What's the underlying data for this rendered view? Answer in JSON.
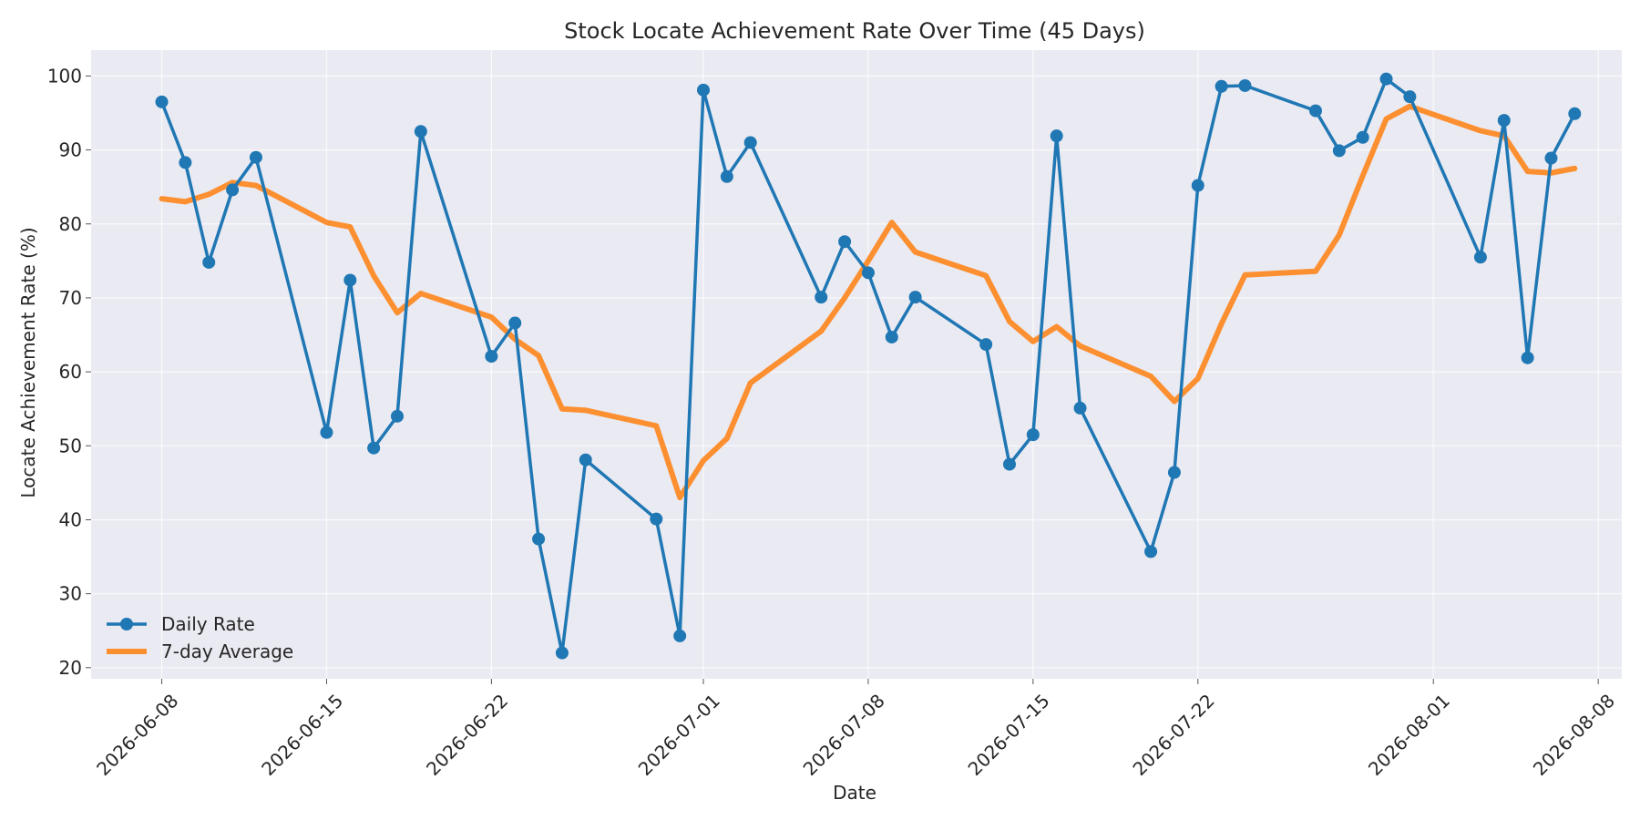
{
  "chart_data": {
    "type": "line",
    "title": "Stock Locate Achievement Rate Over Time (45 Days)",
    "xlabel": "Date",
    "ylabel": "Locate Achievement Rate (%)",
    "ylim": [
      18.5,
      103.5
    ],
    "xlim": [
      "2026-06-05",
      "2026-08-09"
    ],
    "yticks": [
      20,
      30,
      40,
      50,
      60,
      70,
      80,
      90,
      100
    ],
    "xticks": [
      "2026-06-08",
      "2026-06-15",
      "2026-06-22",
      "2026-07-01",
      "2026-07-08",
      "2026-07-15",
      "2026-07-22",
      "2026-08-01",
      "2026-08-08"
    ],
    "grid": true,
    "legend_position": "lower-left",
    "series": [
      {
        "name": "Daily Rate",
        "color": "#1f77b4",
        "marker": "circle",
        "points": [
          [
            "2026-06-08",
            96.5
          ],
          [
            "2026-06-09",
            88.3
          ],
          [
            "2026-06-10",
            74.8
          ],
          [
            "2026-06-11",
            84.6
          ],
          [
            "2026-06-12",
            89.0
          ],
          [
            "2026-06-15",
            51.8
          ],
          [
            "2026-06-16",
            72.4
          ],
          [
            "2026-06-17",
            49.7
          ],
          [
            "2026-06-18",
            54.0
          ],
          [
            "2026-06-19",
            92.5
          ],
          [
            "2026-06-22",
            62.1
          ],
          [
            "2026-06-23",
            66.6
          ],
          [
            "2026-06-24",
            37.4
          ],
          [
            "2026-06-25",
            22.0
          ],
          [
            "2026-06-26",
            48.1
          ],
          [
            "2026-06-29",
            40.1
          ],
          [
            "2026-06-30",
            24.3
          ],
          [
            "2026-07-01",
            98.1
          ],
          [
            "2026-07-02",
            86.4
          ],
          [
            "2026-07-03",
            91.0
          ],
          [
            "2026-07-06",
            70.1
          ],
          [
            "2026-07-07",
            77.6
          ],
          [
            "2026-07-08",
            73.4
          ],
          [
            "2026-07-09",
            64.7
          ],
          [
            "2026-07-10",
            70.1
          ],
          [
            "2026-07-13",
            63.7
          ],
          [
            "2026-07-14",
            47.5
          ],
          [
            "2026-07-15",
            51.5
          ],
          [
            "2026-07-16",
            91.9
          ],
          [
            "2026-07-17",
            55.1
          ],
          [
            "2026-07-20",
            35.7
          ],
          [
            "2026-07-21",
            46.4
          ],
          [
            "2026-07-22",
            85.2
          ],
          [
            "2026-07-23",
            98.6
          ],
          [
            "2026-07-24",
            98.7
          ],
          [
            "2026-07-27",
            95.3
          ],
          [
            "2026-07-28",
            89.9
          ],
          [
            "2026-07-29",
            91.7
          ],
          [
            "2026-07-30",
            99.6
          ],
          [
            "2026-07-31",
            97.2
          ],
          [
            "2026-08-03",
            75.5
          ],
          [
            "2026-08-04",
            94.0
          ],
          [
            "2026-08-05",
            61.9
          ],
          [
            "2026-08-06",
            88.9
          ],
          [
            "2026-08-07",
            94.9
          ]
        ]
      },
      {
        "name": "7-day Average",
        "color": "#ff7f0e",
        "marker": "none",
        "points": [
          [
            "2026-06-08",
            83.4
          ],
          [
            "2026-06-09",
            83.0
          ],
          [
            "2026-06-10",
            84.0
          ],
          [
            "2026-06-11",
            85.6
          ],
          [
            "2026-06-12",
            85.2
          ],
          [
            "2026-06-15",
            80.2
          ],
          [
            "2026-06-16",
            79.6
          ],
          [
            "2026-06-17",
            73.0
          ],
          [
            "2026-06-18",
            68.0
          ],
          [
            "2026-06-19",
            70.6
          ],
          [
            "2026-06-22",
            67.4
          ],
          [
            "2026-06-23",
            64.4
          ],
          [
            "2026-06-24",
            62.2
          ],
          [
            "2026-06-25",
            55.0
          ],
          [
            "2026-06-26",
            54.8
          ],
          [
            "2026-06-29",
            52.7
          ],
          [
            "2026-06-30",
            43.0
          ],
          [
            "2026-07-01",
            48.0
          ],
          [
            "2026-07-02",
            51.0
          ],
          [
            "2026-07-03",
            58.5
          ],
          [
            "2026-07-06",
            65.5
          ],
          [
            "2026-07-07",
            70.0
          ],
          [
            "2026-07-08",
            75.0
          ],
          [
            "2026-07-09",
            80.2
          ],
          [
            "2026-07-10",
            76.2
          ],
          [
            "2026-07-13",
            73.0
          ],
          [
            "2026-07-14",
            66.8
          ],
          [
            "2026-07-15",
            64.1
          ],
          [
            "2026-07-16",
            66.1
          ],
          [
            "2026-07-17",
            63.5
          ],
          [
            "2026-07-20",
            59.4
          ],
          [
            "2026-07-21",
            56.0
          ],
          [
            "2026-07-22",
            59.1
          ],
          [
            "2026-07-23",
            66.5
          ],
          [
            "2026-07-24",
            73.1
          ],
          [
            "2026-07-27",
            73.6
          ],
          [
            "2026-07-28",
            78.5
          ],
          [
            "2026-07-29",
            86.5
          ],
          [
            "2026-07-30",
            94.2
          ],
          [
            "2026-07-31",
            95.9
          ],
          [
            "2026-08-03",
            92.6
          ],
          [
            "2026-08-04",
            91.9
          ],
          [
            "2026-08-05",
            87.1
          ],
          [
            "2026-08-06",
            86.9
          ],
          [
            "2026-08-07",
            87.5
          ]
        ]
      }
    ]
  }
}
